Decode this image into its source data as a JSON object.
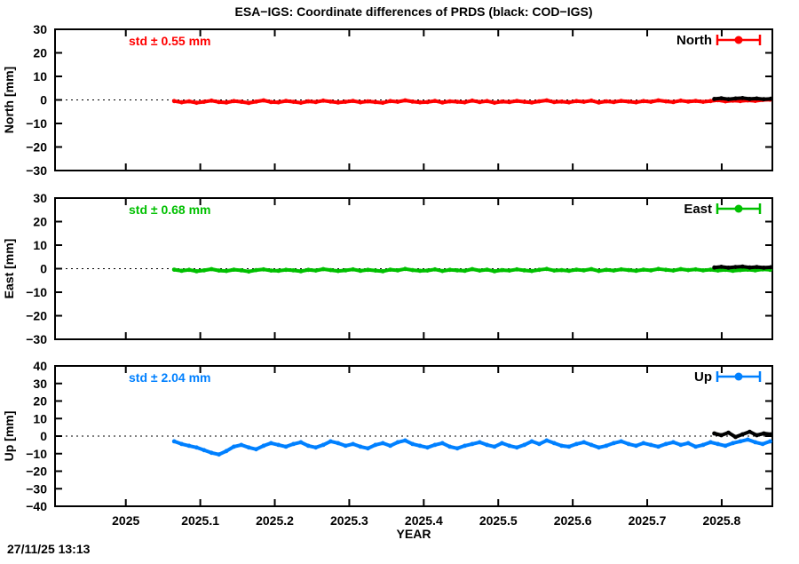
{
  "title": "ESA−IGS: Coordinate differences of PRDS (black: COD−IGS)",
  "timestamp": "27/11/25 13:13",
  "chart_data": {
    "type": "scatter",
    "title": "ESA−IGS: Coordinate differences of PRDS (black: COD−IGS)",
    "xlabel": "YEAR",
    "xlim": [
      2024.905,
      2025.868
    ],
    "x_ticks": [
      {
        "v": 2025.0,
        "label": "2025"
      },
      {
        "v": 2025.1,
        "label": "2025.1"
      },
      {
        "v": 2025.2,
        "label": "2025.2"
      },
      {
        "v": 2025.3,
        "label": "2025.3"
      },
      {
        "v": 2025.4,
        "label": "2025.4"
      },
      {
        "v": 2025.5,
        "label": "2025.5"
      },
      {
        "v": 2025.6,
        "label": "2025.6"
      },
      {
        "v": 2025.7,
        "label": "2025.7"
      },
      {
        "v": 2025.8,
        "label": "2025.8"
      }
    ],
    "grid": "dotted-zero-line-only",
    "legend_position": "top-right-inside",
    "black_overlay_meaning": "COD−IGS",
    "panels": [
      {
        "name": "North",
        "ylabel": "North [mm]",
        "ylim": [
          -30,
          30
        ],
        "ytick_step": 10,
        "std_label": "std ± 0.55 mm",
        "legend_label": "North",
        "color": "#ff0000",
        "series_esa_igs": {
          "x_start": 2025.065,
          "x_step": 0.01,
          "y": [
            -0.5,
            -1.0,
            -0.6,
            -1.2,
            -0.8,
            -0.3,
            -0.9,
            -1.1,
            -0.5,
            -0.8,
            -1.3,
            -0.7,
            -0.2,
            -0.9,
            -1.0,
            -0.4,
            -0.8,
            -1.2,
            -0.6,
            -0.9,
            -0.3,
            -0.7,
            -1.1,
            -0.8,
            -0.4,
            -1.0,
            -0.6,
            -0.9,
            -1.2,
            -0.5,
            -0.8,
            -0.2,
            -0.7,
            -1.0,
            -0.9,
            -0.4,
            -1.1,
            -0.6,
            -0.8,
            -1.0,
            -0.3,
            -0.9,
            -0.5,
            -1.2,
            -0.7,
            -0.9,
            -0.4,
            -0.8,
            -1.1,
            -0.6,
            -0.2,
            -0.9,
            -0.7,
            -1.0,
            -0.5,
            -0.8,
            -0.3,
            -1.1,
            -0.6,
            -0.9,
            -0.4,
            -0.7,
            -1.0,
            -0.5,
            -0.8,
            -0.2,
            -0.6,
            -0.9,
            -0.3,
            -0.7,
            -0.4,
            -0.8,
            -0.5,
            -0.1,
            -0.6,
            -0.3,
            -0.5,
            -0.2,
            -0.4,
            0.0,
            0.1
          ]
        },
        "series_cod_igs": {
          "color": "#000000",
          "x_start": 2025.79,
          "x_step": 0.0095,
          "y": [
            0.4,
            0.7,
            0.3,
            0.6,
            0.8,
            0.4,
            0.6,
            0.3,
            0.5
          ]
        }
      },
      {
        "name": "East",
        "ylabel": "East [mm]",
        "ylim": [
          -30,
          30
        ],
        "ytick_step": 10,
        "std_label": "std ± 0.68 mm",
        "legend_label": "East",
        "color": "#00c000",
        "series_esa_igs": {
          "x_start": 2025.065,
          "x_step": 0.01,
          "y": [
            -0.4,
            -0.9,
            -0.5,
            -1.1,
            -0.7,
            -0.2,
            -0.8,
            -1.0,
            -0.4,
            -0.7,
            -1.2,
            -0.6,
            -0.3,
            -0.8,
            -0.9,
            -0.5,
            -0.7,
            -1.1,
            -0.5,
            -0.8,
            -0.2,
            -0.6,
            -1.0,
            -0.7,
            -0.3,
            -0.9,
            -0.5,
            -0.8,
            -1.1,
            -0.4,
            -0.7,
            -0.1,
            -0.6,
            -0.9,
            -0.8,
            -0.3,
            -1.0,
            -0.5,
            -0.7,
            -0.9,
            -0.2,
            -0.8,
            -0.4,
            -1.1,
            -0.6,
            -0.8,
            -0.3,
            -0.7,
            -1.0,
            -0.5,
            -0.1,
            -0.8,
            -0.6,
            -0.9,
            -0.4,
            -0.7,
            -0.2,
            -1.0,
            -0.5,
            -0.8,
            -0.3,
            -0.6,
            -0.9,
            -0.4,
            -0.7,
            -0.1,
            -0.5,
            -0.8,
            -0.2,
            -0.6,
            -0.3,
            -0.7,
            -0.4,
            -0.8,
            -0.5,
            -0.9,
            -0.6,
            -0.4,
            -0.7,
            -0.3,
            -0.5
          ]
        },
        "series_cod_igs": {
          "color": "#000000",
          "x_start": 2025.79,
          "x_step": 0.0095,
          "y": [
            0.5,
            0.8,
            0.4,
            0.7,
            0.9,
            0.5,
            0.7,
            0.4,
            0.6
          ]
        }
      },
      {
        "name": "Up",
        "ylabel": "Up [mm]",
        "ylim": [
          -40,
          40
        ],
        "ytick_step": 10,
        "std_label": "std ± 2.04 mm",
        "legend_label": "Up",
        "color": "#0080ff",
        "series_esa_igs": {
          "x_start": 2025.065,
          "x_step": 0.01,
          "y": [
            -3.0,
            -4.5,
            -5.5,
            -6.5,
            -8.0,
            -9.5,
            -10.5,
            -8.5,
            -6.0,
            -5.0,
            -6.5,
            -7.5,
            -5.5,
            -4.0,
            -5.0,
            -6.0,
            -4.5,
            -3.5,
            -5.5,
            -6.5,
            -5.0,
            -3.0,
            -4.0,
            -5.5,
            -4.5,
            -6.0,
            -7.0,
            -5.0,
            -4.0,
            -5.5,
            -3.5,
            -2.5,
            -4.5,
            -5.5,
            -6.5,
            -5.0,
            -4.0,
            -6.0,
            -7.0,
            -5.5,
            -4.5,
            -3.5,
            -5.0,
            -6.0,
            -4.0,
            -5.5,
            -6.5,
            -5.0,
            -3.0,
            -4.5,
            -2.5,
            -4.0,
            -5.5,
            -6.0,
            -4.5,
            -3.5,
            -5.0,
            -6.5,
            -5.5,
            -4.0,
            -3.0,
            -4.5,
            -5.5,
            -4.0,
            -5.0,
            -6.0,
            -4.5,
            -3.5,
            -5.0,
            -4.0,
            -6.0,
            -5.0,
            -3.5,
            -4.5,
            -5.5,
            -4.0,
            -3.0,
            -2.0,
            -3.5,
            -4.5,
            -3.0
          ]
        },
        "series_cod_igs": {
          "color": "#000000",
          "x_start": 2025.79,
          "x_step": 0.0095,
          "y": [
            1.5,
            0.5,
            2.0,
            -0.5,
            1.0,
            2.5,
            0.5,
            1.5,
            1.0
          ]
        }
      }
    ]
  }
}
